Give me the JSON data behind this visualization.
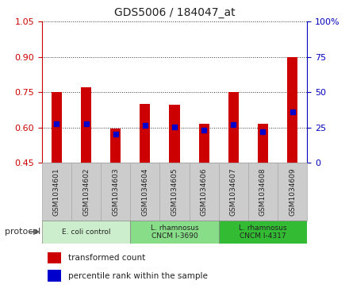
{
  "title": "GDS5006 / 184047_at",
  "samples": [
    "GSM1034601",
    "GSM1034602",
    "GSM1034603",
    "GSM1034604",
    "GSM1034605",
    "GSM1034606",
    "GSM1034607",
    "GSM1034608",
    "GSM1034609"
  ],
  "bar_bottom": 0.45,
  "transformed_counts": [
    0.75,
    0.77,
    0.595,
    0.7,
    0.695,
    0.615,
    0.75,
    0.615,
    0.9
  ],
  "percentile_ranks": [
    0.615,
    0.615,
    0.572,
    0.608,
    0.603,
    0.59,
    0.613,
    0.582,
    0.665
  ],
  "ylim_left": [
    0.45,
    1.05
  ],
  "yticks_left": [
    0.45,
    0.6,
    0.75,
    0.9,
    1.05
  ],
  "ylim_right": [
    0,
    100
  ],
  "yticks_right": [
    0,
    25,
    50,
    75,
    100
  ],
  "yticklabels_right": [
    "0",
    "25",
    "50",
    "75",
    "100%"
  ],
  "bar_color": "#cc0000",
  "percentile_color": "#0000cc",
  "bar_width": 0.35,
  "protocol_colors": [
    "#cceecc",
    "#88dd88",
    "#33bb33"
  ],
  "protocol_ranges": [
    [
      0,
      3
    ],
    [
      3,
      6
    ],
    [
      6,
      9
    ]
  ],
  "protocol_labels": [
    "E. coli control",
    "L. rhamnosus\nCNCM I-3690",
    "L. rhamnosus\nCNCM I-4317"
  ],
  "legend_items": [
    {
      "label": "transformed count",
      "color": "#cc0000"
    },
    {
      "label": "percentile rank within the sample",
      "color": "#0000cc"
    }
  ],
  "left_axis_color": "#cc0000",
  "right_axis_color": "#0000bb",
  "sample_bg_color": "#cccccc",
  "protocol_label": "protocol"
}
